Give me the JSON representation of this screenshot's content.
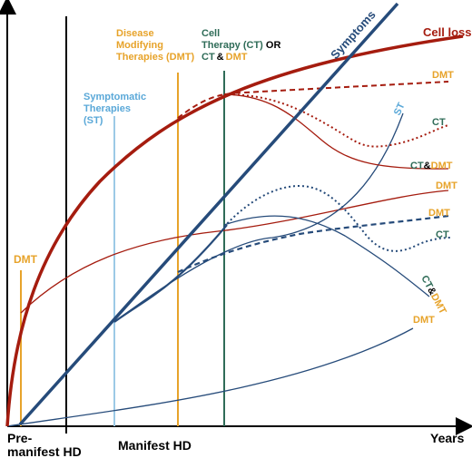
{
  "axes": {
    "x_label": "Years",
    "pre_manifest_line1": "Pre-",
    "pre_manifest_line2": "manifest HD",
    "manifest": "Manifest HD"
  },
  "interventions": {
    "dmt_early": "DMT",
    "symptomatic_line1": "Symptomatic",
    "symptomatic_line2": "Therapies",
    "symptomatic_line3": "(ST)",
    "dmt_head_line1": "Disease",
    "dmt_head_line2": "Modifying",
    "dmt_head_line3": "Therapies (DMT)",
    "ct_head_line1": "Cell",
    "ct_head_line2a": "Therapy (CT) ",
    "ct_head_line2b": "OR",
    "ct_head_line3a": "CT",
    "ct_head_line3b": "&",
    "ct_head_line3c": "DMT"
  },
  "curve_labels": {
    "cell_loss": "Cell loss",
    "symptoms": "Symptoms",
    "dmt_top": "DMT",
    "ct_top": "CT",
    "ct_top2": "CT",
    "ct_top3": "&",
    "ct_top4": "DMT",
    "dmt_mid": "DMT",
    "st": "ST",
    "dmt_low": "DMT",
    "ct_low": "CT",
    "ct_dmt_low1": "CT",
    "ct_dmt_low2": "&",
    "ct_dmt_low3": "DMT",
    "dmt_bottom": "DMT"
  },
  "colors": {
    "cell_loss": "#a51c0f",
    "symptoms": "#264b7a",
    "dmt": "#e7a32a",
    "st": "#5aa8d8",
    "ct": "#2f6c58",
    "axis": "#000000"
  }
}
